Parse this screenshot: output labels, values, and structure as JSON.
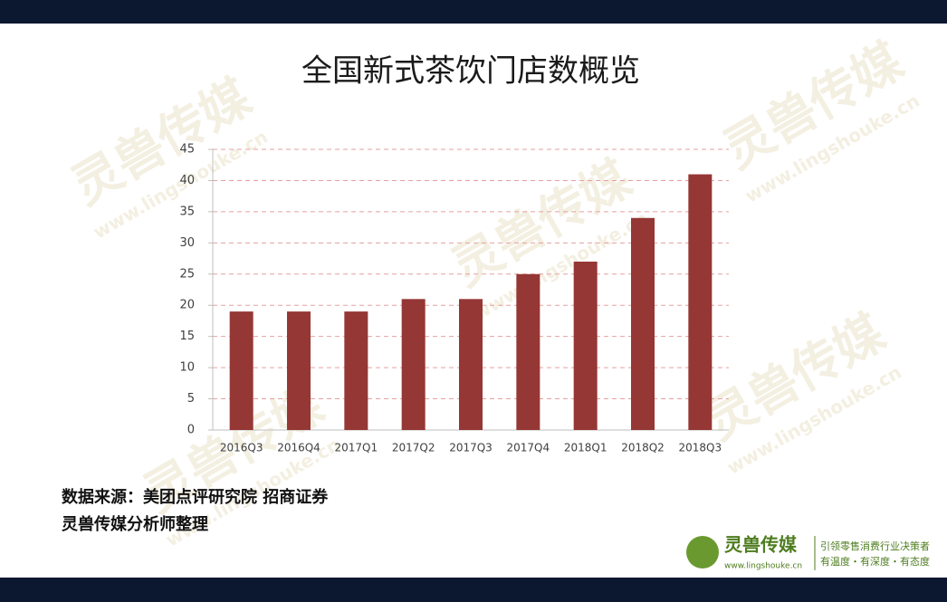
{
  "chart_data": {
    "type": "bar",
    "title": "全国新式茶饮门店数概览",
    "categories": [
      "2016Q3",
      "2016Q4",
      "2017Q1",
      "2017Q2",
      "2017Q3",
      "2017Q4",
      "2018Q1",
      "2018Q2",
      "2018Q3"
    ],
    "values": [
      19,
      19,
      19,
      21,
      21,
      25,
      27,
      34,
      41
    ],
    "color": "#953735",
    "ylim": [
      0,
      45
    ],
    "yticks": [
      0,
      5,
      10,
      15,
      20,
      25,
      30,
      35,
      40,
      45
    ],
    "grid": true
  },
  "source": [
    "数据来源：美团点评研究院 招商证券",
    "灵兽传媒分析师整理"
  ],
  "logo": {
    "name": "灵兽传媒",
    "url": "www.lingshouke.cn",
    "slogan": "引领零售消费行业决策者",
    "motto": "有温度・有深度・有态度"
  },
  "watermark": {
    "name": "灵兽传媒",
    "url": "www.lingshouke.cn"
  }
}
